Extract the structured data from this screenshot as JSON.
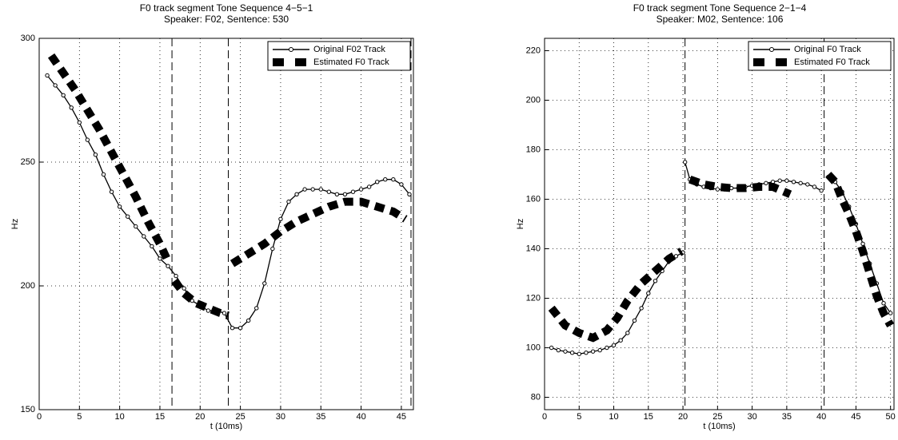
{
  "chart_data": [
    {
      "type": "line",
      "title": [
        "F0 track segment Tone Sequence 4−5−1",
        "Speaker: F02, Sentence: 530"
      ],
      "xlabel": "t (10ms)",
      "ylabel": "Hz",
      "xlim": [
        0,
        46.5
      ],
      "ylim": [
        150,
        300
      ],
      "xticks": [
        0,
        5,
        10,
        15,
        20,
        25,
        30,
        35,
        40,
        45
      ],
      "yticks": [
        150,
        200,
        250,
        300
      ],
      "grid": true,
      "legend": "upper right",
      "boundaries": [
        16.5,
        23.5,
        46.2
      ],
      "series": [
        {
          "name": "Original F02 Track",
          "color": "#000000",
          "style": "line-marker",
          "x": [
            1,
            2,
            3,
            4,
            5,
            6,
            7,
            8,
            9,
            10,
            11,
            12,
            13,
            14,
            15,
            16,
            17,
            18,
            19,
            20,
            21,
            22,
            23,
            24,
            25,
            26,
            27,
            28,
            29,
            30,
            31,
            32,
            33,
            34,
            35,
            36,
            37,
            38,
            39,
            40,
            41,
            42,
            43,
            44,
            45,
            46
          ],
          "values": [
            285,
            281,
            277,
            272,
            266,
            259,
            253,
            245,
            238,
            232,
            228,
            224,
            220,
            216,
            211,
            208,
            204,
            199,
            194,
            192,
            190,
            190,
            189,
            183,
            183,
            186,
            191,
            201,
            215,
            227,
            234,
            237,
            239,
            239,
            239,
            238,
            237,
            237,
            238,
            239,
            240,
            242,
            243,
            243,
            241,
            237
          ]
        },
        {
          "name": "Estimated F0 Track",
          "color": "#000000",
          "style": "thick-dash",
          "x": [
            1.5,
            3,
            4.5,
            6,
            7.5,
            9,
            10.5,
            12,
            13.5,
            15,
            16,
            null,
            16.8,
            18,
            19.5,
            21,
            22.5,
            23.5,
            null,
            24,
            26,
            28,
            30,
            32,
            34,
            36,
            38,
            40,
            42,
            44,
            45.5
          ],
          "values": [
            293,
            286,
            279,
            271,
            263,
            254,
            245,
            236,
            226,
            217,
            210,
            null,
            202,
            197,
            193,
            191,
            189,
            188,
            null,
            209,
            213,
            217,
            222,
            226,
            229,
            232,
            234,
            234,
            232,
            230,
            227
          ]
        }
      ]
    },
    {
      "type": "line",
      "title": [
        "F0 track segment Tone Sequence 2−1−4",
        "Speaker: M02, Sentence: 106"
      ],
      "xlabel": "t (10ms)",
      "ylabel": "Hz",
      "xlim": [
        0,
        50.5
      ],
      "ylim": [
        75,
        225
      ],
      "xticks": [
        0,
        5,
        10,
        15,
        20,
        25,
        30,
        35,
        40,
        45,
        50
      ],
      "yticks": [
        80,
        100,
        120,
        140,
        160,
        180,
        200,
        220
      ],
      "grid": true,
      "legend": "upper right",
      "boundaries": [
        20.3,
        40.4
      ],
      "series": [
        {
          "name": "Original F0 Track",
          "color": "#000000",
          "style": "line-marker",
          "x": [
            1,
            2,
            3,
            4,
            5,
            6,
            7,
            8,
            9,
            10,
            11,
            12,
            13,
            14,
            15,
            16,
            17,
            18,
            19,
            20,
            null,
            20.3,
            21,
            22,
            23,
            24,
            25,
            26,
            27,
            28,
            29,
            30,
            31,
            32,
            33,
            34,
            35,
            36,
            37,
            38,
            39,
            40,
            null,
            41,
            42,
            43,
            44,
            45,
            46,
            47,
            48,
            49,
            50
          ],
          "values": [
            100,
            99,
            98.5,
            98,
            97.5,
            98,
            98.5,
            99,
            100,
            101,
            103,
            106,
            111,
            116,
            122,
            127,
            131,
            135,
            137,
            138.5,
            null,
            175,
            168,
            166,
            165,
            164.5,
            164,
            164,
            164.5,
            164.5,
            165,
            165.5,
            166,
            166.5,
            167,
            167.5,
            167.5,
            167,
            166.5,
            166,
            165,
            163.5,
            null,
            169,
            167,
            163,
            157,
            150,
            142,
            134,
            126,
            118,
            114
          ]
        },
        {
          "name": "Estimated F0 Track",
          "color": "#000000",
          "style": "thick-dash",
          "x": [
            1,
            3,
            5,
            7,
            9,
            10.5,
            12,
            14,
            16,
            18,
            19.8,
            null,
            21,
            23,
            25,
            27,
            29,
            31,
            33,
            35.5,
            null,
            41,
            42,
            43,
            44,
            45,
            46,
            47,
            48,
            49,
            50
          ],
          "values": [
            116,
            109,
            106,
            104,
            107,
            112,
            119,
            126,
            131,
            136,
            139,
            null,
            168,
            166,
            165,
            164.5,
            164.5,
            165,
            165,
            162,
            null,
            170,
            167,
            160,
            154,
            147,
            139,
            130,
            121,
            114,
            109
          ]
        }
      ]
    }
  ]
}
